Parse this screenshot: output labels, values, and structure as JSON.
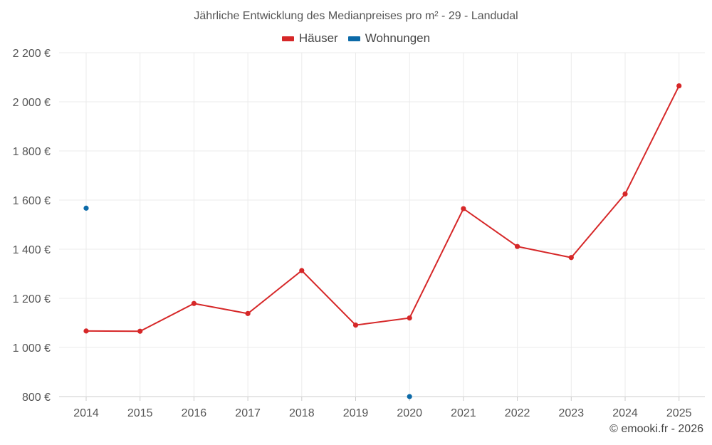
{
  "chart_data": {
    "type": "line",
    "title": "Jährliche Entwicklung des Medianpreises pro m² - 29 - Landudal",
    "xlabel": "",
    "ylabel": "",
    "categories": [
      "2014",
      "2015",
      "2016",
      "2017",
      "2018",
      "2019",
      "2020",
      "2021",
      "2022",
      "2023",
      "2024",
      "2025"
    ],
    "ylim": [
      800,
      2200
    ],
    "yticks": [
      800,
      1000,
      1200,
      1400,
      1600,
      1800,
      2000,
      2200
    ],
    "ytick_labels": [
      "800 €",
      "1 000 €",
      "1 200 €",
      "1 400 €",
      "1 600 €",
      "1 800 €",
      "2 000 €",
      "2 200 €"
    ],
    "grid": true,
    "legend_position": "top-center",
    "series": [
      {
        "name": "Häuser",
        "color": "#d62728",
        "values": [
          1067,
          1066,
          1179,
          1138,
          1313,
          1091,
          1120,
          1565,
          1411,
          1366,
          1625,
          2065
        ]
      },
      {
        "name": "Wohnungen",
        "color": "#0c6aa8",
        "values": [
          1567,
          null,
          null,
          null,
          null,
          null,
          800,
          null,
          null,
          null,
          null,
          null
        ]
      }
    ]
  },
  "footer": {
    "copyright": "© emooki.fr - 2026"
  }
}
